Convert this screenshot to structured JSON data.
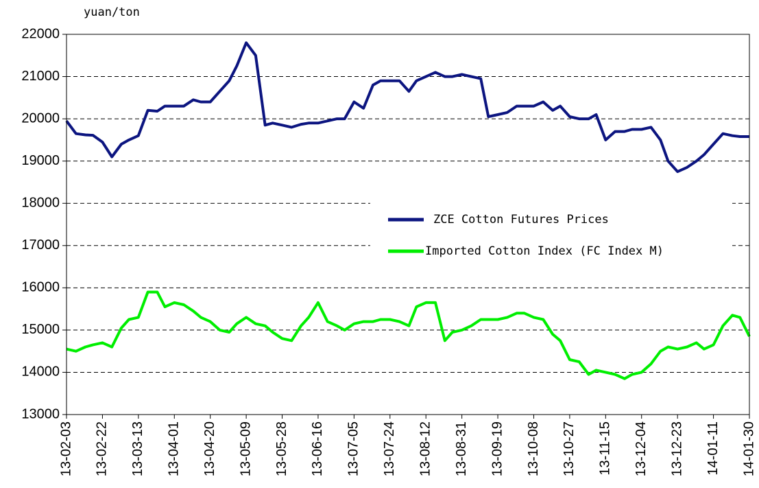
{
  "chart_data": {
    "type": "line",
    "y_label": "yuan/ton",
    "x": [
      "13-02-03",
      "13-02-08",
      "13-02-13",
      "13-02-17",
      "13-02-22",
      "13-02-27",
      "13-03-04",
      "13-03-08",
      "13-03-13",
      "13-03-18",
      "13-03-23",
      "13-03-27",
      "13-04-01",
      "13-04-06",
      "13-04-11",
      "13-04-15",
      "13-04-20",
      "13-04-25",
      "13-04-30",
      "13-05-04",
      "13-05-09",
      "13-05-14",
      "13-05-19",
      "13-05-23",
      "13-05-28",
      "13-06-02",
      "13-06-07",
      "13-06-11",
      "13-06-16",
      "13-06-21",
      "13-06-26",
      "13-06-30",
      "13-07-05",
      "13-07-10",
      "13-07-15",
      "13-07-19",
      "13-07-24",
      "13-07-29",
      "13-08-03",
      "13-08-07",
      "13-08-12",
      "13-08-17",
      "13-08-22",
      "13-08-26",
      "13-08-31",
      "13-09-05",
      "13-09-10",
      "13-09-14",
      "13-09-19",
      "13-09-24",
      "13-09-29",
      "13-10-03",
      "13-10-08",
      "13-10-13",
      "13-10-18",
      "13-10-22",
      "13-10-27",
      "13-11-01",
      "13-11-06",
      "13-11-10",
      "13-11-15",
      "13-11-20",
      "13-11-25",
      "13-11-29",
      "13-12-04",
      "13-12-09",
      "13-12-14",
      "13-12-18",
      "13-12-23",
      "13-12-28",
      "14-01-02",
      "14-01-06",
      "14-01-11",
      "14-01-16",
      "14-01-21",
      "14-01-25",
      "14-01-30"
    ],
    "series": [
      {
        "name": "ZCE Cotton Futures Prices",
        "color": "#0c1580",
        "values": [
          19950,
          19650,
          19620,
          19610,
          19450,
          19100,
          19400,
          19500,
          19600,
          20200,
          20180,
          20300,
          20300,
          20300,
          20450,
          20400,
          20400,
          20650,
          20900,
          21250,
          21800,
          21500,
          19850,
          19900,
          19850,
          19800,
          19870,
          19900,
          19900,
          19950,
          20000,
          20000,
          20400,
          20250,
          20800,
          20900,
          20900,
          20900,
          20650,
          20900,
          21000,
          21100,
          21000,
          21000,
          21050,
          21000,
          20950,
          20050,
          20100,
          20150,
          20300,
          20300,
          20300,
          20400,
          20200,
          20300,
          20050,
          20000,
          20000,
          20100,
          19500,
          19700,
          19700,
          19750,
          19750,
          19800,
          19500,
          19000,
          18750,
          18850,
          19000,
          19150,
          19400,
          19650,
          19600,
          19580,
          19580
        ]
      },
      {
        "name": "Imported Cotton Index (FC Index M)",
        "color": "#00ee00",
        "values": [
          14550,
          14500,
          14600,
          14650,
          14700,
          14600,
          15050,
          15250,
          15300,
          15900,
          15900,
          15550,
          15650,
          15600,
          15450,
          15300,
          15200,
          15000,
          14950,
          15150,
          15300,
          15150,
          15100,
          14950,
          14800,
          14750,
          15100,
          15300,
          15650,
          15200,
          15100,
          15000,
          15150,
          15200,
          15200,
          15250,
          15250,
          15200,
          15100,
          15550,
          15650,
          15650,
          14750,
          14950,
          15000,
          15100,
          15250,
          15250,
          15250,
          15300,
          15400,
          15400,
          15300,
          15250,
          14900,
          14750,
          14300,
          14250,
          13950,
          14050,
          14000,
          13950,
          13850,
          13950,
          14000,
          14200,
          14500,
          14600,
          14550,
          14600,
          14700,
          14550,
          14650,
          15100,
          15350,
          15300,
          14850
        ]
      }
    ],
    "xlim": [
      "13-02-03",
      "14-01-30"
    ],
    "xticks": [
      "13-02-03",
      "13-02-22",
      "13-03-13",
      "13-04-01",
      "13-04-20",
      "13-05-09",
      "13-05-28",
      "13-06-16",
      "13-07-05",
      "13-07-24",
      "13-08-12",
      "13-08-31",
      "13-09-19",
      "13-10-08",
      "13-10-27",
      "13-11-15",
      "13-12-04",
      "13-12-23",
      "14-01-11",
      "14-01-30"
    ],
    "ylim": [
      13000,
      22000
    ],
    "yticks": [
      13000,
      14000,
      15000,
      16000,
      17000,
      18000,
      19000,
      20000,
      21000,
      22000
    ],
    "grid": true
  }
}
